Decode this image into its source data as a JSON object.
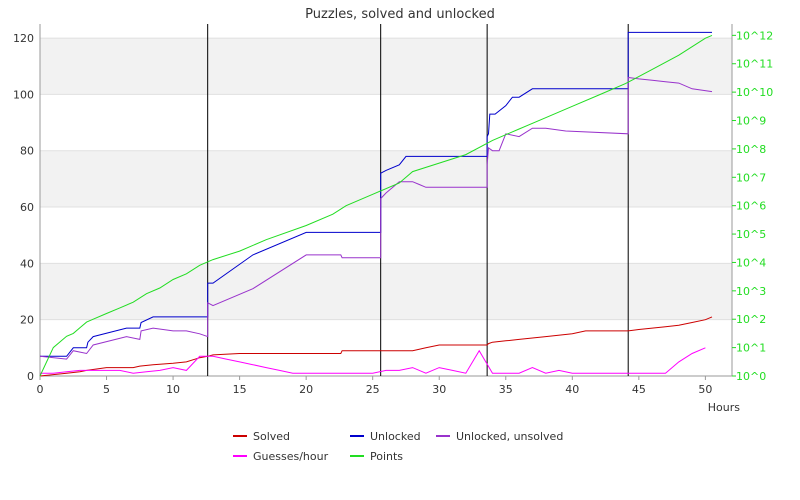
{
  "chart_data": {
    "type": "line",
    "title": "Puzzles, solved and unlocked",
    "xlabel": "Hours",
    "xlim": [
      0,
      52
    ],
    "x_ticks": [
      0,
      5,
      10,
      15,
      20,
      25,
      30,
      35,
      40,
      45,
      50
    ],
    "ylim": [
      0,
      125
    ],
    "y_ticks": [
      0,
      20,
      40,
      60,
      80,
      100,
      120
    ],
    "y2_log_range": [
      0,
      12.4
    ],
    "y2_ticks": [
      "10^0",
      "10^1",
      "10^2",
      "10^3",
      "10^4",
      "10^5",
      "10^6",
      "10^7",
      "10^8",
      "10^9",
      "10^10",
      "10^11",
      "10^12"
    ],
    "grid": "horizontal bands",
    "legend_position": "bottom",
    "vlines": [
      12.6,
      25.6,
      33.6,
      44.2
    ],
    "series": [
      {
        "name": "Solved",
        "color": "#cc0000",
        "axis": "left",
        "x": [
          0,
          1,
          2,
          3,
          3.5,
          5,
          7,
          7.5,
          8.5,
          10,
          11,
          12,
          12.6,
          13,
          15,
          20,
          22.6,
          22.7,
          25.6,
          28,
          28.5,
          29,
          30,
          33.6,
          33.7,
          34,
          35,
          36,
          37,
          38,
          40,
          41,
          43,
          44.2,
          45,
          46,
          47,
          48,
          49,
          50,
          50.5
        ],
        "y": [
          0,
          0.5,
          1,
          1.5,
          2,
          3,
          3,
          3.5,
          4,
          4.5,
          5,
          6.5,
          7,
          7.5,
          8,
          8,
          8,
          9,
          9,
          9,
          9.5,
          10,
          11,
          11,
          11.5,
          12,
          12.5,
          13,
          13.5,
          14,
          15,
          16,
          16,
          16,
          16.5,
          17,
          17.5,
          18,
          19,
          20,
          21
        ]
      },
      {
        "name": "Unlocked",
        "color": "#0000cc",
        "axis": "left",
        "x": [
          0,
          2,
          2.5,
          3.5,
          3.6,
          4,
          6.5,
          7.5,
          7.6,
          8.5,
          12.6,
          12.6,
          13,
          16,
          20,
          25.6,
          25.6,
          26,
          27,
          27.5,
          28,
          30,
          33.6,
          33.6,
          33.7,
          33.8,
          34.2,
          35,
          35.5,
          36,
          37,
          44.2,
          44.2,
          50.5
        ],
        "y": [
          7,
          7,
          10,
          10,
          12,
          14,
          17,
          17,
          19,
          21,
          21,
          33,
          33,
          43,
          51,
          51,
          72,
          73,
          75,
          78,
          78,
          78,
          78,
          85,
          86,
          93,
          93,
          96,
          99,
          99,
          102,
          102,
          122,
          122
        ]
      },
      {
        "name": "Unlocked, unsolved",
        "color": "#9933cc",
        "axis": "left",
        "x": [
          0,
          2,
          2.5,
          3.5,
          4,
          6.5,
          7.5,
          7.6,
          8.5,
          10,
          11,
          12,
          12.6,
          12.6,
          13,
          16,
          20,
          22.6,
          22.7,
          25.6,
          25.6,
          26,
          27,
          28,
          28.5,
          29,
          30,
          33.6,
          33.6,
          33.7,
          34,
          34.5,
          35,
          36,
          37,
          38,
          39.5,
          44.2,
          44.2,
          45,
          46,
          47,
          48,
          49,
          50.5
        ],
        "y": [
          7,
          6,
          9,
          8,
          11,
          14,
          13,
          16,
          17,
          16,
          16,
          15,
          14,
          26,
          25,
          31,
          43,
          43,
          42,
          42,
          63,
          65,
          69,
          69,
          68,
          67,
          67,
          67,
          75,
          81,
          80,
          80,
          86,
          85,
          88,
          88,
          87,
          86,
          106,
          105.5,
          105,
          104.5,
          104,
          102,
          101
        ]
      },
      {
        "name": "Guesses/hour",
        "color": "#ff00ff",
        "axis": "left",
        "x": [
          0,
          1,
          2,
          3,
          4,
          5,
          6,
          7,
          8,
          9,
          10,
          11,
          12,
          13,
          14,
          15,
          16,
          17,
          18,
          19,
          20,
          21,
          22,
          23,
          24,
          25,
          26,
          27,
          28,
          29,
          30,
          31,
          32,
          33,
          34,
          35,
          36,
          37,
          38,
          39,
          40,
          41,
          42,
          43,
          44,
          45,
          46,
          47,
          48,
          49,
          50
        ],
        "y": [
          1,
          1,
          1.5,
          2,
          2,
          2,
          2,
          1,
          1.5,
          2,
          3,
          2,
          7,
          7,
          6,
          5,
          4,
          3,
          2,
          1,
          1,
          1,
          1,
          1,
          1,
          1,
          2,
          2,
          3,
          1,
          3,
          2,
          1,
          9,
          1,
          1,
          1,
          3,
          1,
          2,
          1,
          1,
          1,
          1,
          1,
          1,
          1,
          1,
          5,
          8,
          10
        ]
      },
      {
        "name": "Points",
        "color": "#22dd22",
        "axis": "right_log",
        "x": [
          0,
          1,
          2,
          2.5,
          3,
          3.5,
          4,
          5,
          6,
          7,
          8,
          9,
          10,
          11,
          12,
          13,
          15,
          17,
          20,
          22,
          23,
          25,
          27,
          28,
          30,
          32,
          34,
          35,
          36,
          38,
          40,
          42,
          44,
          46,
          48,
          49,
          50,
          50.5
        ],
        "y": [
          0,
          1,
          1.4,
          1.5,
          1.7,
          1.9,
          2.0,
          2.2,
          2.4,
          2.6,
          2.9,
          3.1,
          3.4,
          3.6,
          3.9,
          4.1,
          4.4,
          4.8,
          5.3,
          5.7,
          6.0,
          6.4,
          6.8,
          7.2,
          7.5,
          7.8,
          8.3,
          8.5,
          8.7,
          9.1,
          9.5,
          9.9,
          10.3,
          10.8,
          11.3,
          11.6,
          11.9,
          12.0
        ]
      }
    ]
  }
}
